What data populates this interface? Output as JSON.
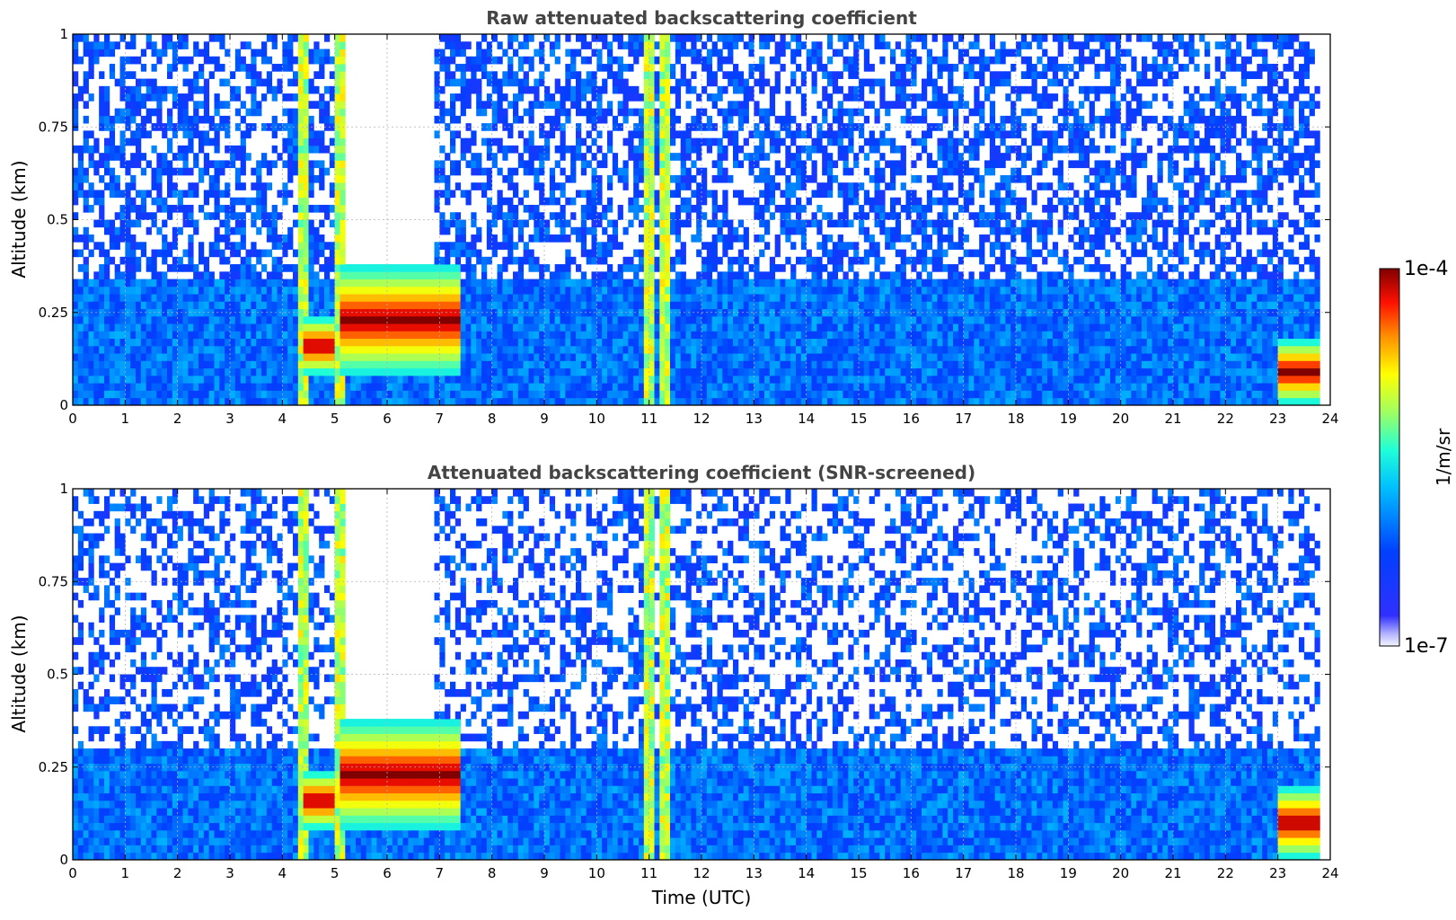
{
  "chart_data": [
    {
      "type": "heatmap",
      "title": "Raw attenuated backscattering coefficient",
      "xlabel": "",
      "ylabel": "Altitude (km)",
      "xlim": [
        0,
        24
      ],
      "ylim": [
        0,
        1
      ],
      "xticks": [
        "0",
        "1",
        "2",
        "3",
        "4",
        "5",
        "6",
        "7",
        "8",
        "9",
        "10",
        "11",
        "12",
        "13",
        "14",
        "15",
        "16",
        "17",
        "18",
        "19",
        "20",
        "21",
        "22",
        "23",
        "24"
      ],
      "yticks": [
        "0",
        "0.25",
        "0.5",
        "0.75",
        "1"
      ],
      "grid": true,
      "color_scale": "jet",
      "features": [
        {
          "name": "cloud",
          "t_start": 4.45,
          "t_end": 5.0,
          "alt_bottom": 0.08,
          "alt_top": 0.24
        },
        {
          "name": "cloud",
          "t_start": 5.15,
          "t_end": 7.4,
          "alt_bottom": 0.08,
          "alt_top": 0.38
        },
        {
          "name": "cloud",
          "t_start": 23.0,
          "t_end": 23.8,
          "alt_bottom": 0.0,
          "alt_top": 0.18
        },
        {
          "name": "aerosol-layer",
          "t_start": 0.0,
          "t_end": 23.8,
          "alt_bottom": 0.0,
          "alt_top": 0.33
        },
        {
          "name": "no-signal",
          "t_start": 5.2,
          "t_end": 6.9,
          "alt_bottom": 0.3,
          "alt_top": 1.0
        }
      ],
      "vertical_streaks": [
        4.4,
        5.1,
        11.0,
        11.3
      ]
    },
    {
      "type": "heatmap",
      "title": "Attenuated backscattering coefficient (SNR-screened)",
      "xlabel": "Time (UTC)",
      "ylabel": "Altitude (km)",
      "xlim": [
        0,
        24
      ],
      "ylim": [
        0,
        1
      ],
      "xticks": [
        "0",
        "1",
        "2",
        "3",
        "4",
        "5",
        "6",
        "7",
        "8",
        "9",
        "10",
        "11",
        "12",
        "13",
        "14",
        "15",
        "16",
        "17",
        "18",
        "19",
        "20",
        "21",
        "22",
        "23",
        "24"
      ],
      "yticks": [
        "0",
        "0.25",
        "0.5",
        "0.75",
        "1"
      ],
      "grid": true,
      "color_scale": "jet",
      "features": [
        {
          "name": "cloud",
          "t_start": 4.45,
          "t_end": 5.0,
          "alt_bottom": 0.08,
          "alt_top": 0.24
        },
        {
          "name": "cloud",
          "t_start": 5.15,
          "t_end": 7.4,
          "alt_bottom": 0.08,
          "alt_top": 0.38
        },
        {
          "name": "cloud",
          "t_start": 23.0,
          "t_end": 23.8,
          "alt_bottom": 0.0,
          "alt_top": 0.2
        },
        {
          "name": "aerosol-layer",
          "t_start": 0.0,
          "t_end": 23.8,
          "alt_bottom": 0.0,
          "alt_top": 0.3
        },
        {
          "name": "no-signal",
          "t_start": 5.2,
          "t_end": 6.9,
          "alt_bottom": 0.3,
          "alt_top": 1.0
        }
      ],
      "vertical_streaks": [
        4.4,
        5.1,
        11.0,
        11.3
      ]
    }
  ],
  "colorbar": {
    "max_label": "1e-4",
    "min_label": "1e-7",
    "label": "1/m/sr",
    "range": [
      1e-07,
      0.0001
    ],
    "scale": "log"
  }
}
